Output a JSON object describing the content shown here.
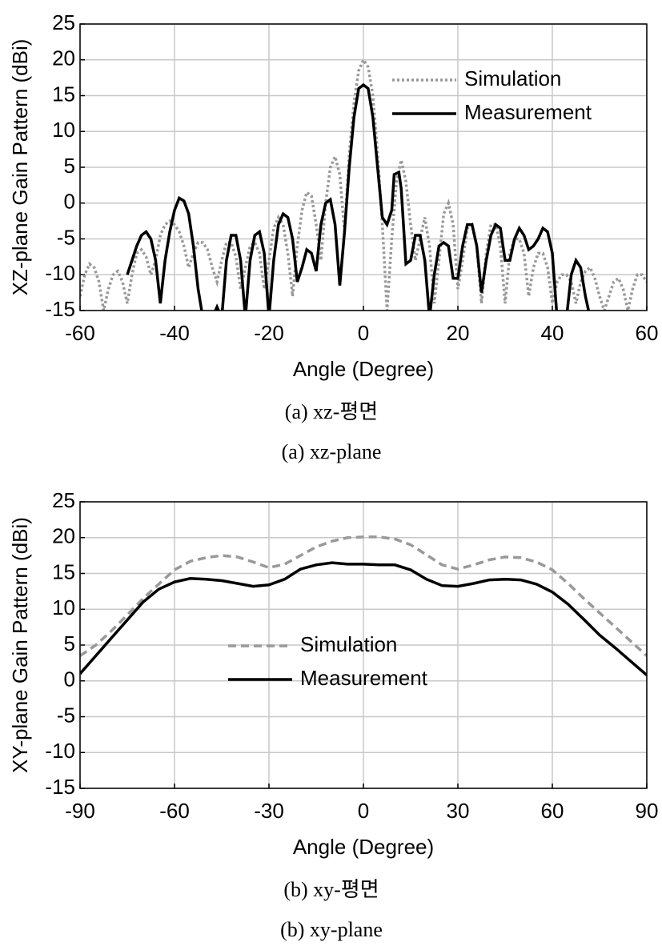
{
  "chart_data": [
    {
      "type": "line",
      "title": null,
      "xlabel": "Angle (Degree)",
      "ylabel": "XZ-plane Gain Pattern (dBi)",
      "captions": [
        "(a) xz-평면",
        "(a) xz-plane"
      ],
      "xlim": [
        -60,
        60
      ],
      "ylim": [
        -15,
        25
      ],
      "xticks": [
        -60,
        -40,
        -20,
        0,
        20,
        40,
        60
      ],
      "yticks": [
        -15,
        -10,
        -5,
        0,
        5,
        10,
        15,
        20,
        25
      ],
      "grid": true,
      "legend": "upper right",
      "series": [
        {
          "name": "Simulation",
          "color": "#999999",
          "linestyle": "dotted",
          "x": [
            -60,
            -59,
            -58,
            -57,
            -56,
            -55,
            -54,
            -53,
            -52,
            -51,
            -50,
            -49,
            -48,
            -47,
            -46,
            -45,
            -44,
            -43,
            -42,
            -41,
            -40,
            -39,
            -38,
            -37,
            -36,
            -35,
            -34,
            -33,
            -32,
            -31,
            -30,
            -29,
            -28,
            -27,
            -26,
            -25,
            -24,
            -23,
            -22,
            -21,
            -20,
            -19,
            -18,
            -17,
            -16,
            -15,
            -14,
            -13,
            -12,
            -11,
            -10,
            -9,
            -8,
            -7,
            -6,
            -5,
            -4,
            -3,
            -2,
            -1,
            0,
            1,
            2,
            3,
            4,
            5,
            6,
            7,
            8,
            9,
            10,
            11,
            12,
            13,
            14,
            15,
            16,
            17,
            18,
            19,
            20,
            21,
            22,
            23,
            24,
            25,
            26,
            27,
            28,
            29,
            30,
            31,
            32,
            33,
            34,
            35,
            36,
            37,
            38,
            39,
            40,
            41,
            42,
            43,
            44,
            45,
            46,
            47,
            48,
            49,
            50,
            51,
            52,
            53,
            54,
            55,
            56,
            57,
            58,
            59,
            60
          ],
          "values": [
            -13,
            -10,
            -8.5,
            -9,
            -11,
            -15,
            -12,
            -10,
            -9.5,
            -11,
            -14,
            -10,
            -7,
            -6.5,
            -7.5,
            -10,
            -8,
            -4.5,
            -3,
            -2.5,
            -3,
            -4,
            -6,
            -9,
            -7,
            -5.5,
            -5.5,
            -6.5,
            -9,
            -11,
            -8,
            -5.5,
            -5.5,
            -7.5,
            -12,
            -9,
            -6,
            -5.5,
            -7,
            -12,
            -8,
            -3.5,
            -2,
            -3,
            -7,
            -13,
            -6,
            -1,
            1.5,
            1,
            -3,
            -8,
            0,
            5,
            6.5,
            4,
            -4,
            7,
            14,
            18.5,
            20,
            19,
            15,
            7,
            -3,
            -15,
            -5,
            3,
            6,
            3,
            -3,
            -8,
            -5,
            -2,
            -6,
            -14,
            -8,
            -1.5,
            0,
            -3,
            -12,
            -8,
            -3.5,
            -3,
            -6,
            -14,
            -7,
            -3,
            -3,
            -6,
            -14,
            -7,
            -5,
            -5,
            -7,
            -13,
            -9,
            -7,
            -7,
            -9,
            -14,
            -11,
            -10,
            -10,
            -11,
            -14,
            -11,
            -9.5,
            -9,
            -10.5,
            -13,
            -15,
            -13,
            -11,
            -10.5,
            -12,
            -15,
            -12,
            -10,
            -10,
            -11
          ]
        },
        {
          "name": "Measurement",
          "color": "#000000",
          "linestyle": "solid",
          "x": [
            -50,
            -48,
            -47,
            -46,
            -45,
            -44,
            -43,
            -42,
            -41,
            -40,
            -39,
            -38,
            -37,
            -36,
            -35,
            -34,
            -32,
            -31,
            -30,
            -29,
            -28,
            -27,
            -26,
            -25,
            -24,
            -23,
            -22,
            -21,
            -20,
            -19,
            -18,
            -17,
            -16,
            -15,
            -14,
            -13,
            -12,
            -11,
            -10,
            -9,
            -8,
            -7,
            -6,
            -5,
            -4,
            -3,
            -2,
            -1,
            0,
            1,
            2,
            3,
            4,
            5,
            6,
            6.5,
            7.5,
            8,
            9,
            10,
            11,
            12,
            13,
            14,
            15,
            16,
            17,
            18,
            19,
            20,
            21,
            22,
            23,
            24,
            25,
            26,
            27,
            28,
            29,
            30,
            31,
            32,
            33,
            34,
            35,
            36,
            37,
            38,
            39,
            40,
            41,
            43,
            44,
            45,
            46,
            47,
            48
          ],
          "values": [
            -10,
            -6,
            -4.5,
            -4,
            -5,
            -8,
            -14,
            -8,
            -4,
            -1,
            0.7,
            0.3,
            -1.5,
            -6,
            -12,
            -16,
            -16,
            -14.5,
            -16,
            -8,
            -4.5,
            -4.5,
            -8,
            -16,
            -8,
            -4.5,
            -4,
            -7,
            -16,
            -8,
            -3,
            -1.5,
            -2,
            -5,
            -11,
            -9,
            -6.5,
            -7,
            -9.5,
            -3,
            0,
            0.5,
            -3,
            -11.5,
            -4,
            5,
            12,
            16,
            16.5,
            16,
            12,
            5,
            -2,
            -3,
            -1,
            4,
            4.3,
            2,
            -8.5,
            -8,
            -4.5,
            -4.5,
            -8,
            -16,
            -10,
            -6,
            -5.5,
            -6,
            -10.5,
            -10.5,
            -6,
            -3,
            -3,
            -6,
            -12.5,
            -8,
            -4.5,
            -3,
            -3.5,
            -8,
            -8,
            -5,
            -3.5,
            -4.5,
            -6.5,
            -6,
            -5,
            -3.5,
            -4,
            -7,
            -16,
            -16,
            -10,
            -8,
            -9,
            -13,
            -16
          ]
        }
      ]
    },
    {
      "type": "line",
      "title": null,
      "xlabel": "Angle (Degree)",
      "ylabel": "XY-plane Gain Pattern (dBi)",
      "captions": [
        "(b) xy-평면",
        "(b) xy-plane"
      ],
      "xlim": [
        -90,
        90
      ],
      "ylim": [
        -15,
        25
      ],
      "xticks": [
        -90,
        -60,
        -30,
        0,
        30,
        60,
        90
      ],
      "yticks": [
        -15,
        -10,
        -5,
        0,
        5,
        10,
        15,
        20,
        25
      ],
      "grid": true,
      "legend": "center",
      "series": [
        {
          "name": "Simulation",
          "color": "#999999",
          "linestyle": "dashed",
          "x": [
            -90,
            -85,
            -80,
            -75,
            -70,
            -65,
            -60,
            -55,
            -50,
            -45,
            -40,
            -35,
            -30,
            -25,
            -20,
            -15,
            -10,
            -5,
            0,
            5,
            10,
            15,
            20,
            25,
            30,
            35,
            40,
            45,
            50,
            55,
            60,
            65,
            70,
            75,
            80,
            85,
            90
          ],
          "values": [
            3.5,
            5,
            7,
            9.2,
            11.5,
            13.5,
            15.5,
            16.7,
            17.2,
            17.5,
            17.3,
            16.6,
            15.8,
            16.3,
            17.5,
            18.7,
            19.5,
            20,
            20.1,
            20.1,
            19.8,
            19,
            17.6,
            16.2,
            15.6,
            16.2,
            16.9,
            17.3,
            17.2,
            16.6,
            15.5,
            13.6,
            11.5,
            9.5,
            7.5,
            5.5,
            3.5
          ]
        },
        {
          "name": "Measurement",
          "color": "#000000",
          "linestyle": "solid",
          "x": [
            -90,
            -85,
            -80,
            -75,
            -70,
            -65,
            -60,
            -55,
            -50,
            -45,
            -40,
            -35,
            -30,
            -25,
            -20,
            -15,
            -10,
            -5,
            0,
            5,
            10,
            15,
            20,
            25,
            30,
            35,
            40,
            45,
            50,
            55,
            60,
            65,
            70,
            75,
            80,
            85,
            90
          ],
          "values": [
            1,
            3.5,
            6,
            8.5,
            11,
            12.8,
            13.8,
            14.3,
            14.2,
            14,
            13.6,
            13.2,
            13.4,
            14.2,
            15.6,
            16.2,
            16.5,
            16.3,
            16.3,
            16.2,
            16.2,
            15.5,
            14.2,
            13.3,
            13.2,
            13.6,
            14.1,
            14.2,
            14.1,
            13.5,
            12.4,
            10.7,
            8.6,
            6.4,
            4.6,
            2.7,
            0.8
          ]
        }
      ]
    }
  ]
}
